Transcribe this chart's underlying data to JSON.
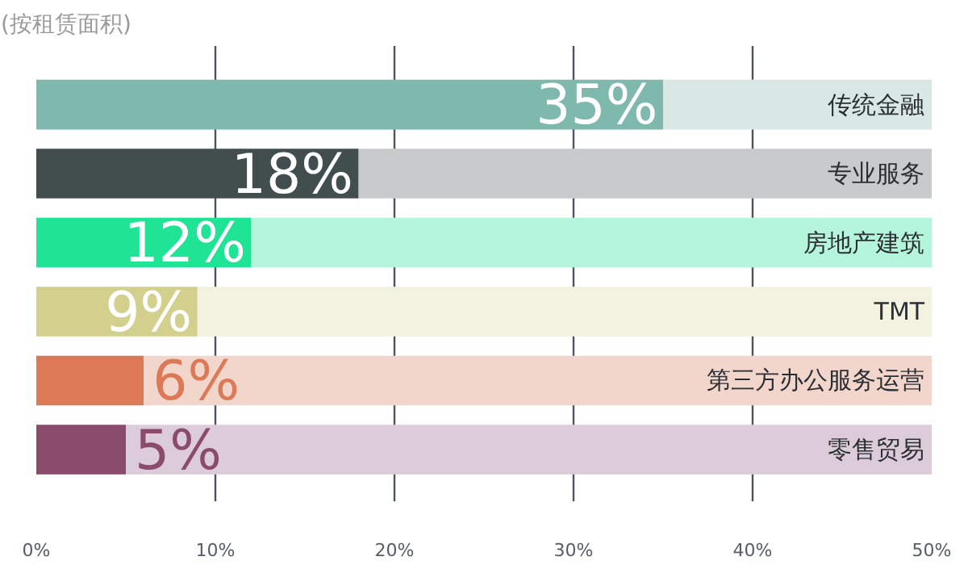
{
  "chart_data": {
    "type": "bar",
    "orientation": "horizontal",
    "stacked": true,
    "title": "(按租赁面积)",
    "categories": [
      "传统金融",
      "专业服务",
      "房地产建筑",
      "TMT",
      "第三方办公服务运营",
      "零售贸易"
    ],
    "series": [
      {
        "colors": [
          "#7fb8ac",
          "#414e4d",
          "#1fe395",
          "#d3d08e",
          "#dc7a57",
          "#8a4b6d"
        ],
        "values": [
          35,
          18,
          12,
          9,
          6,
          5
        ],
        "value_labels": [
          "35%",
          "18%",
          "12%",
          "9%",
          "6%",
          "5%"
        ]
      },
      {
        "colors": [
          "#d9e8e4",
          "#c8cbcb",
          "#b4f5dc",
          "#f3f1e0",
          "#f2d6cc",
          "#dccbd8"
        ],
        "values": [
          15,
          32,
          38,
          41,
          44,
          45
        ]
      }
    ],
    "xlim": [
      0,
      50
    ],
    "xticks": [
      {
        "value": 0,
        "label": "0%"
      },
      {
        "value": 10,
        "label": "10%"
      },
      {
        "value": 20,
        "label": "20%"
      },
      {
        "value": 30,
        "label": "30%"
      },
      {
        "value": 40,
        "label": "40%"
      },
      {
        "value": 50,
        "label": "50%"
      }
    ],
    "grid": "x"
  }
}
